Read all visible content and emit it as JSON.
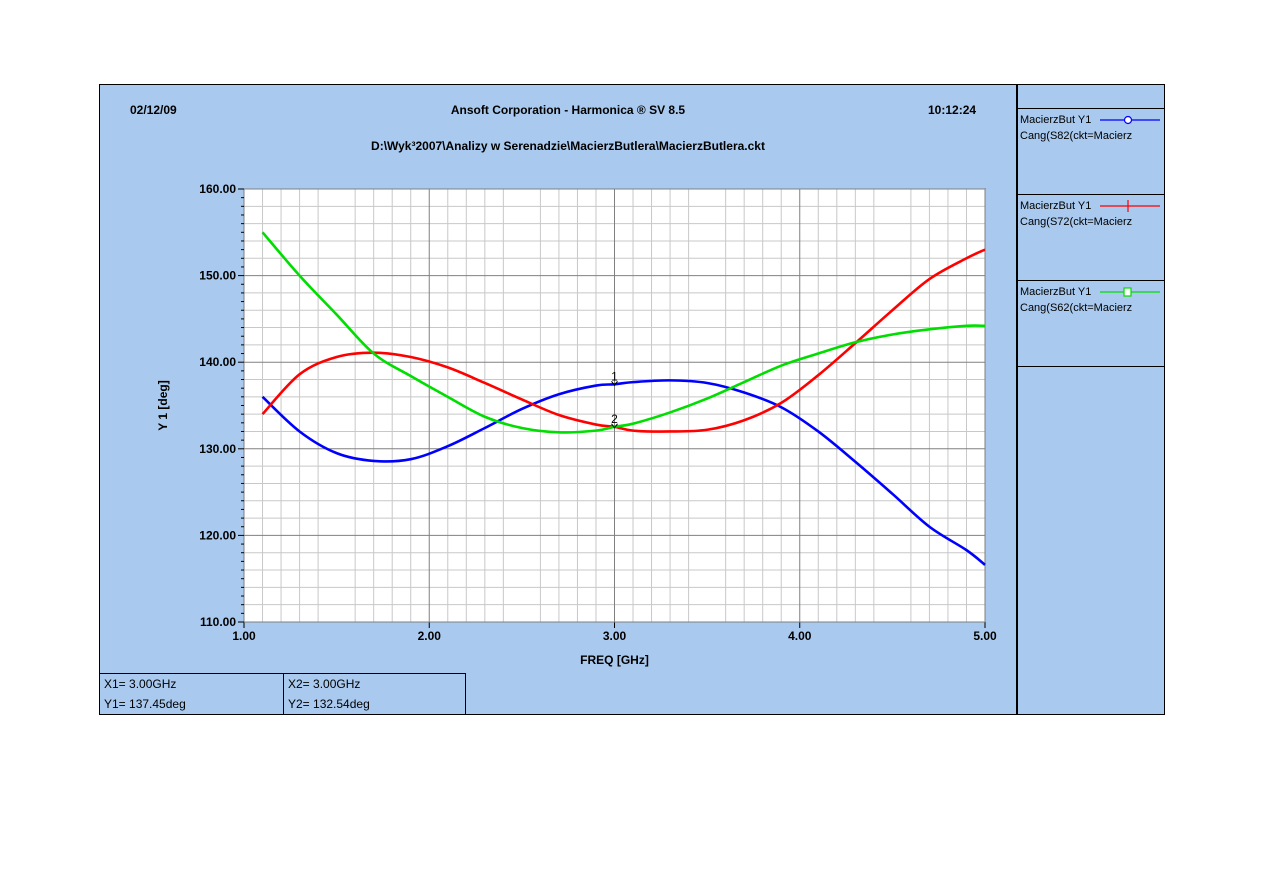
{
  "header": {
    "date": "02/12/09",
    "title": "Ansoft Corporation - Harmonica ® SV 8.5",
    "time": "10:12:24",
    "subtitle": "D:\\Wyk³2007\\Analizy w Serenadzie\\MacierzButlera\\MacierzButlera.ckt"
  },
  "legend": [
    {
      "line1": "MacierzBut Y1",
      "line2": "Cang(S82(ckt=Macierz",
      "color": "#0000ff",
      "marker": "circle"
    },
    {
      "line1": "MacierzBut Y1",
      "line2": "Cang(S72(ckt=Macierz",
      "color": "#ff0000",
      "marker": "cross"
    },
    {
      "line1": "MacierzBut Y1",
      "line2": "Cang(S62(ckt=Macierz",
      "color": "#00dd00",
      "marker": "square"
    }
  ],
  "markers": {
    "m1": {
      "x": "X1= 3.00GHz",
      "y": "Y1= 137.45deg",
      "label": "1"
    },
    "m2": {
      "x": "X2= 3.00GHz",
      "y": "Y2= 132.54deg",
      "label": "2"
    }
  },
  "chart_data": {
    "type": "line",
    "title": "",
    "xlabel": "FREQ [GHz]",
    "ylabel": "Y 1  [deg]",
    "xlim": [
      1.0,
      5.0
    ],
    "ylim": [
      110.0,
      160.0
    ],
    "xticks": [
      "1.00",
      "2.00",
      "3.00",
      "4.00",
      "5.00"
    ],
    "yticks": [
      "110.00",
      "120.00",
      "130.00",
      "140.00",
      "150.00",
      "160.00"
    ],
    "grid": true,
    "legend_position": "right panel",
    "series": [
      {
        "name": "Cang(S82(ckt=Macierz",
        "color": "#0000ff",
        "x": [
          1.1,
          1.3,
          1.5,
          1.7,
          1.9,
          2.1,
          2.3,
          2.5,
          2.7,
          2.9,
          3.0,
          3.1,
          3.3,
          3.5,
          3.7,
          3.9,
          4.1,
          4.3,
          4.5,
          4.7,
          4.9,
          5.0
        ],
        "y": [
          136.0,
          132.0,
          129.5,
          128.6,
          128.8,
          130.3,
          132.4,
          134.6,
          136.3,
          137.3,
          137.45,
          137.7,
          137.9,
          137.6,
          136.5,
          134.8,
          132.0,
          128.5,
          124.8,
          121.0,
          118.3,
          116.6
        ]
      },
      {
        "name": "Cang(S72(ckt=Macierz",
        "color": "#ff0000",
        "x": [
          1.1,
          1.3,
          1.5,
          1.7,
          1.9,
          2.1,
          2.3,
          2.5,
          2.7,
          2.9,
          3.0,
          3.1,
          3.3,
          3.5,
          3.7,
          3.9,
          4.1,
          4.3,
          4.5,
          4.7,
          4.9,
          5.0
        ],
        "y": [
          134.0,
          138.6,
          140.6,
          141.1,
          140.6,
          139.4,
          137.6,
          135.7,
          133.9,
          132.8,
          132.54,
          132.1,
          132.0,
          132.2,
          133.3,
          135.3,
          138.5,
          142.2,
          146.0,
          149.6,
          152.0,
          153.0
        ]
      },
      {
        "name": "Cang(S62(ckt=Macierz",
        "color": "#00dd00",
        "x": [
          1.1,
          1.3,
          1.5,
          1.7,
          1.9,
          2.1,
          2.3,
          2.5,
          2.7,
          2.9,
          3.0,
          3.1,
          3.3,
          3.5,
          3.7,
          3.9,
          4.1,
          4.3,
          4.5,
          4.7,
          4.9,
          5.0
        ],
        "y": [
          155.0,
          150.0,
          145.5,
          141.0,
          138.4,
          136.0,
          133.7,
          132.4,
          131.9,
          132.1,
          132.54,
          132.9,
          134.2,
          135.8,
          137.7,
          139.6,
          141.0,
          142.3,
          143.2,
          143.8,
          144.2,
          144.2
        ]
      }
    ]
  }
}
